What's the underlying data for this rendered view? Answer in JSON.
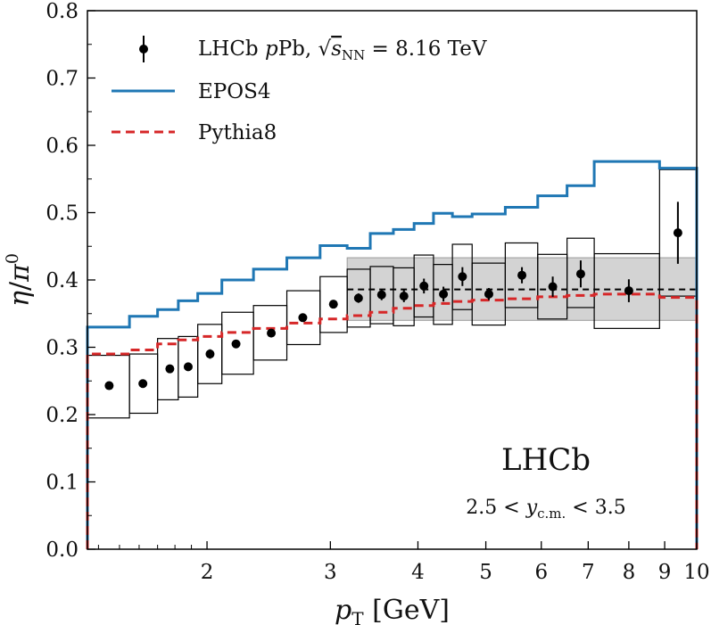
{
  "chart_data": {
    "type": "line",
    "xlabel": "p_T [GeV]",
    "ylabel": "η/π⁰",
    "xscale": "log",
    "xlim": [
      1.35,
      10
    ],
    "ylim": [
      0.0,
      0.8
    ],
    "xticks": [
      2,
      3,
      4,
      5,
      6,
      7,
      8,
      9,
      10
    ],
    "yticks": [
      0.0,
      0.1,
      0.2,
      0.3,
      0.4,
      0.5,
      0.6,
      0.7,
      0.8
    ],
    "experiment_label": "LHCb",
    "rapidity_label": "2.5 < y_c.m. < 3.5",
    "legend": {
      "position": "top-left",
      "entries": [
        {
          "label": "LHCb pPb, √s_NN = 8.16 TeV",
          "style": "errorbar",
          "color": "#000000"
        },
        {
          "label": "EPOS4",
          "style": "solid",
          "color": "#1f77b4"
        },
        {
          "label": "Pythia8",
          "style": "dashed",
          "color": "#d62728"
        }
      ]
    },
    "data_series": {
      "name": "LHCb pPb, √s_NN = 8.16 TeV",
      "points": [
        {
          "x": 1.45,
          "xlo": 1.35,
          "xhi": 1.55,
          "y": 0.243,
          "stat": 0.005,
          "syslo": 0.195,
          "syshi": 0.288
        },
        {
          "x": 1.62,
          "xlo": 1.55,
          "xhi": 1.7,
          "y": 0.246,
          "stat": 0.005,
          "syslo": 0.202,
          "syshi": 0.29
        },
        {
          "x": 1.77,
          "xlo": 1.7,
          "xhi": 1.82,
          "y": 0.268,
          "stat": 0.005,
          "syslo": 0.222,
          "syshi": 0.313
        },
        {
          "x": 1.88,
          "xlo": 1.82,
          "xhi": 1.94,
          "y": 0.271,
          "stat": 0.006,
          "syslo": 0.226,
          "syshi": 0.316
        },
        {
          "x": 2.02,
          "xlo": 1.94,
          "xhi": 2.1,
          "y": 0.29,
          "stat": 0.007,
          "syslo": 0.246,
          "syshi": 0.334
        },
        {
          "x": 2.2,
          "xlo": 2.1,
          "xhi": 2.33,
          "y": 0.305,
          "stat": 0.004,
          "syslo": 0.26,
          "syshi": 0.352
        },
        {
          "x": 2.47,
          "xlo": 2.33,
          "xhi": 2.6,
          "y": 0.321,
          "stat": 0.004,
          "syslo": 0.281,
          "syshi": 0.362
        },
        {
          "x": 2.74,
          "xlo": 2.6,
          "xhi": 2.9,
          "y": 0.344,
          "stat": 0.004,
          "syslo": 0.304,
          "syshi": 0.384
        },
        {
          "x": 3.03,
          "xlo": 2.9,
          "xhi": 3.17,
          "y": 0.364,
          "stat": 0.005,
          "syslo": 0.322,
          "syshi": 0.405
        },
        {
          "x": 3.29,
          "xlo": 3.17,
          "xhi": 3.42,
          "y": 0.373,
          "stat": 0.007,
          "syslo": 0.33,
          "syshi": 0.416
        },
        {
          "x": 3.55,
          "xlo": 3.42,
          "xhi": 3.69,
          "y": 0.378,
          "stat": 0.008,
          "syslo": 0.335,
          "syshi": 0.42
        },
        {
          "x": 3.82,
          "xlo": 3.69,
          "xhi": 3.95,
          "y": 0.376,
          "stat": 0.009,
          "syslo": 0.332,
          "syshi": 0.418
        },
        {
          "x": 4.08,
          "xlo": 3.95,
          "xhi": 4.21,
          "y": 0.391,
          "stat": 0.011,
          "syslo": 0.345,
          "syshi": 0.437
        },
        {
          "x": 4.35,
          "xlo": 4.21,
          "xhi": 4.48,
          "y": 0.379,
          "stat": 0.011,
          "syslo": 0.334,
          "syshi": 0.423
        },
        {
          "x": 4.63,
          "xlo": 4.48,
          "xhi": 4.78,
          "y": 0.405,
          "stat": 0.014,
          "syslo": 0.356,
          "syshi": 0.453
        },
        {
          "x": 5.05,
          "xlo": 4.78,
          "xhi": 5.33,
          "y": 0.379,
          "stat": 0.009,
          "syslo": 0.333,
          "syshi": 0.425
        },
        {
          "x": 5.63,
          "xlo": 5.33,
          "xhi": 5.93,
          "y": 0.407,
          "stat": 0.012,
          "syslo": 0.359,
          "syshi": 0.455
        },
        {
          "x": 6.23,
          "xlo": 5.93,
          "xhi": 6.53,
          "y": 0.39,
          "stat": 0.015,
          "syslo": 0.342,
          "syshi": 0.438
        },
        {
          "x": 6.83,
          "xlo": 6.53,
          "xhi": 7.14,
          "y": 0.409,
          "stat": 0.02,
          "syslo": 0.359,
          "syshi": 0.462
        },
        {
          "x": 8.0,
          "xlo": 7.14,
          "xhi": 8.85,
          "y": 0.384,
          "stat": 0.017,
          "syslo": 0.328,
          "syshi": 0.439
        },
        {
          "x": 9.4,
          "xlo": 8.85,
          "xhi": 10.0,
          "y": 0.47,
          "stat": 0.046,
          "syslo": 0.376,
          "syshi": 0.564
        }
      ]
    },
    "average_band": {
      "xlo": 3.17,
      "xhi": 10.0,
      "y": 0.386,
      "ylo": 0.34,
      "yhi": 0.433
    },
    "epos4_series": {
      "name": "EPOS4",
      "color": "#1f77b4",
      "edges": [
        1.35,
        1.55,
        1.7,
        1.82,
        1.94,
        2.1,
        2.33,
        2.6,
        2.9,
        3.17,
        3.42,
        3.69,
        3.95,
        4.21,
        4.48,
        4.78,
        5.33,
        5.93,
        6.53,
        7.14,
        8.85,
        10.0
      ],
      "values": [
        0.33,
        0.346,
        0.356,
        0.369,
        0.38,
        0.4,
        0.416,
        0.433,
        0.451,
        0.447,
        0.469,
        0.475,
        0.484,
        0.499,
        0.494,
        0.498,
        0.508,
        0.525,
        0.54,
        0.576,
        0.566
      ]
    },
    "pythia8_series": {
      "name": "Pythia8",
      "color": "#d62728",
      "edges": [
        1.35,
        1.55,
        1.7,
        1.82,
        1.94,
        2.1,
        2.33,
        2.6,
        2.9,
        3.17,
        3.42,
        3.69,
        3.95,
        4.21,
        4.48,
        4.78,
        5.33,
        5.93,
        6.53,
        7.14,
        8.85,
        10.0
      ],
      "values": [
        0.29,
        0.296,
        0.305,
        0.311,
        0.316,
        0.322,
        0.328,
        0.336,
        0.342,
        0.347,
        0.352,
        0.358,
        0.362,
        0.365,
        0.368,
        0.37,
        0.372,
        0.375,
        0.377,
        0.379,
        0.374
      ]
    }
  }
}
